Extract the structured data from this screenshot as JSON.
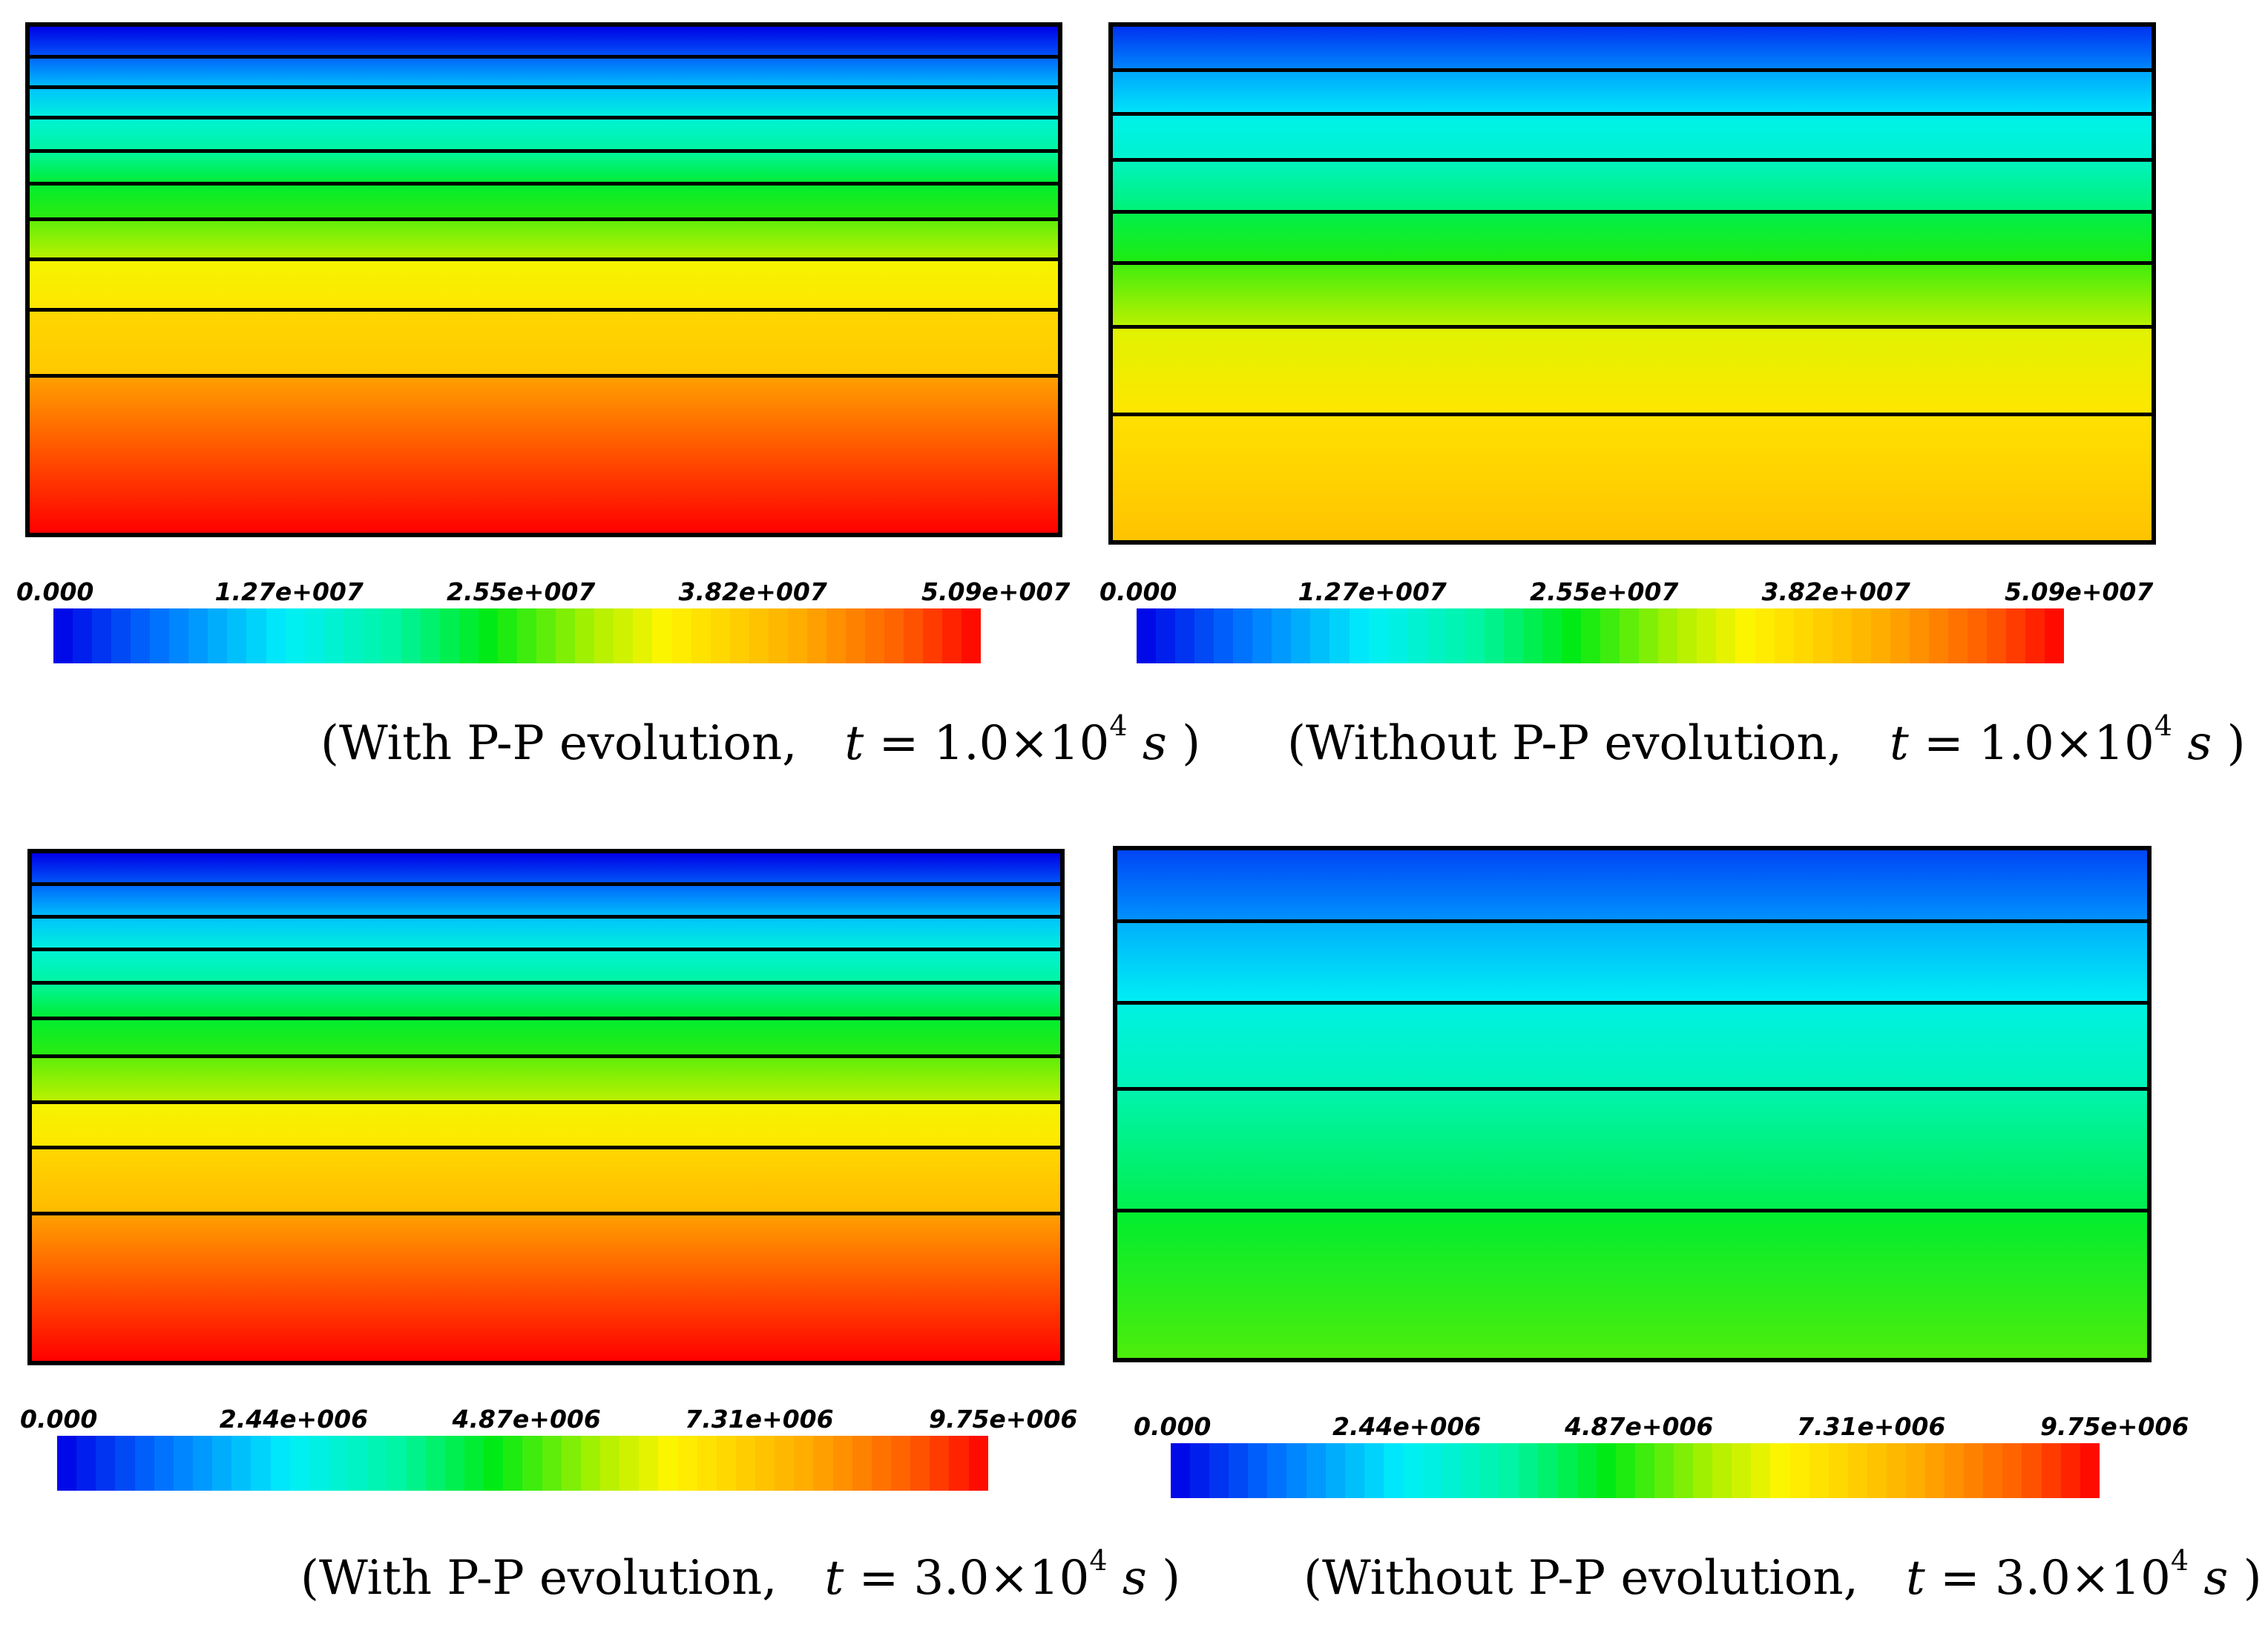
{
  "chart_data": [
    {
      "type": "heatmap",
      "title": "With P-P evolution, t = 1.0×10^4 s",
      "caption": {
        "before": "(With P-P evolution,",
        "t": "t",
        "eq": "= 1.0×10",
        "exp": "4",
        "s": "s",
        "after": ")"
      },
      "colorbar": {
        "min": 0.0,
        "max": 50900000.0,
        "ticks": [
          "0.000",
          "1.27e+007",
          "2.55e+007",
          "3.82e+007",
          "5.09e+007"
        ]
      },
      "layers": [
        {
          "top": 0.0,
          "bottom": 0.06,
          "range": [
            0.0,
            0.09
          ]
        },
        {
          "top": 0.06,
          "bottom": 0.12,
          "range": [
            0.1,
            0.2
          ]
        },
        {
          "top": 0.12,
          "bottom": 0.18,
          "range": [
            0.2,
            0.29
          ]
        },
        {
          "top": 0.18,
          "bottom": 0.245,
          "range": [
            0.3,
            0.37
          ]
        },
        {
          "top": 0.245,
          "bottom": 0.31,
          "range": [
            0.37,
            0.45
          ]
        },
        {
          "top": 0.31,
          "bottom": 0.38,
          "range": [
            0.45,
            0.5
          ]
        },
        {
          "top": 0.38,
          "bottom": 0.46,
          "range": [
            0.53,
            0.6
          ]
        },
        {
          "top": 0.46,
          "bottom": 0.56,
          "range": [
            0.65,
            0.69
          ]
        },
        {
          "top": 0.56,
          "bottom": 0.69,
          "range": [
            0.72,
            0.75
          ]
        },
        {
          "top": 0.69,
          "bottom": 1.0,
          "range": [
            0.82,
            1.0
          ]
        }
      ]
    },
    {
      "type": "heatmap",
      "title": "Without P-P evolution, t = 1.0×10^4 s",
      "caption": {
        "before": "(Without P-P evolution,",
        "t": "t",
        "eq": "= 1.0×10",
        "exp": "4",
        "s": "s",
        "after": ")"
      },
      "colorbar": {
        "min": 0.0,
        "max": 50900000.0,
        "ticks": [
          "0.000",
          "1.27e+007",
          "2.55e+007",
          "3.82e+007",
          "5.09e+007"
        ]
      },
      "layers": [
        {
          "top": 0.0,
          "bottom": 0.085,
          "range": [
            0.05,
            0.14
          ]
        },
        {
          "top": 0.085,
          "bottom": 0.17,
          "range": [
            0.17,
            0.24
          ]
        },
        {
          "top": 0.17,
          "bottom": 0.26,
          "range": [
            0.27,
            0.31
          ]
        },
        {
          "top": 0.26,
          "bottom": 0.36,
          "range": [
            0.33,
            0.4
          ]
        },
        {
          "top": 0.36,
          "bottom": 0.46,
          "range": [
            0.43,
            0.49
          ]
        },
        {
          "top": 0.46,
          "bottom": 0.585,
          "range": [
            0.51,
            0.6
          ]
        },
        {
          "top": 0.585,
          "bottom": 0.755,
          "range": [
            0.63,
            0.69
          ]
        },
        {
          "top": 0.755,
          "bottom": 1.0,
          "range": [
            0.7,
            0.76
          ]
        }
      ]
    },
    {
      "type": "heatmap",
      "title": "With P-P evolution, t = 3.0×10^4 s",
      "caption": {
        "before": "(With P-P evolution,",
        "t": "t",
        "eq": "= 3.0×10",
        "exp": "4",
        "s": "s",
        "after": ")"
      },
      "colorbar": {
        "min": 0.0,
        "max": 9750000.0,
        "ticks": [
          "0.000",
          "2.44e+006",
          "4.87e+006",
          "7.31e+006",
          "9.75e+006"
        ]
      },
      "layers": [
        {
          "top": 0.0,
          "bottom": 0.06,
          "range": [
            0.0,
            0.09
          ]
        },
        {
          "top": 0.06,
          "bottom": 0.125,
          "range": [
            0.1,
            0.2
          ]
        },
        {
          "top": 0.125,
          "bottom": 0.19,
          "range": [
            0.2,
            0.29
          ]
        },
        {
          "top": 0.19,
          "bottom": 0.255,
          "range": [
            0.3,
            0.37
          ]
        },
        {
          "top": 0.255,
          "bottom": 0.325,
          "range": [
            0.37,
            0.45
          ]
        },
        {
          "top": 0.325,
          "bottom": 0.4,
          "range": [
            0.45,
            0.5
          ]
        },
        {
          "top": 0.4,
          "bottom": 0.49,
          "range": [
            0.53,
            0.6
          ]
        },
        {
          "top": 0.49,
          "bottom": 0.58,
          "range": [
            0.65,
            0.69
          ]
        },
        {
          "top": 0.58,
          "bottom": 0.71,
          "range": [
            0.72,
            0.78
          ]
        },
        {
          "top": 0.71,
          "bottom": 1.0,
          "range": [
            0.82,
            1.0
          ]
        }
      ]
    },
    {
      "type": "heatmap",
      "title": "Without P-P evolution, t = 3.0×10^4 s",
      "caption": {
        "before": "(Without P-P evolution,",
        "t": "t",
        "eq": "= 3.0×10",
        "exp": "4",
        "s": "s",
        "after": ")"
      },
      "colorbar": {
        "min": 0.0,
        "max": 9750000.0,
        "ticks": [
          "0.000",
          "2.44e+006",
          "4.87e+006",
          "7.31e+006",
          "9.75e+006"
        ]
      },
      "layers": [
        {
          "top": 0.0,
          "bottom": 0.14,
          "range": [
            0.07,
            0.15
          ]
        },
        {
          "top": 0.14,
          "bottom": 0.3,
          "range": [
            0.18,
            0.26
          ]
        },
        {
          "top": 0.3,
          "bottom": 0.47,
          "range": [
            0.28,
            0.34
          ]
        },
        {
          "top": 0.47,
          "bottom": 0.71,
          "range": [
            0.35,
            0.43
          ]
        },
        {
          "top": 0.71,
          "bottom": 1.0,
          "range": [
            0.45,
            0.52
          ]
        }
      ]
    }
  ]
}
